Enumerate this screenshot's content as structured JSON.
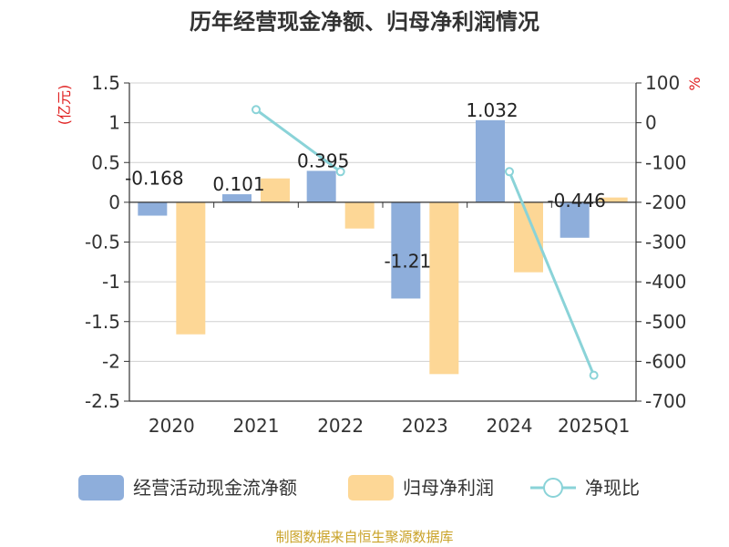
{
  "chart_data": {
    "type": "bar+line",
    "title": "历年经营现金净额、归母净利润情况",
    "categories": [
      "2020",
      "2021",
      "2022",
      "2023",
      "2024",
      "2025Q1"
    ],
    "series": [
      {
        "name": "经营活动现金流净额",
        "axis": "left",
        "type": "bar",
        "color": "#8eaedb",
        "values": [
          -0.168,
          0.101,
          0.395,
          -1.21,
          1.032,
          -0.446
        ],
        "labels": [
          "-0.168",
          "0.101",
          "0.395",
          "-1.21",
          "1.032",
          "-0.446"
        ]
      },
      {
        "name": "归母净利润",
        "axis": "left",
        "type": "bar",
        "color": "#fdd796",
        "values": [
          -1.66,
          0.3,
          -0.33,
          -2.16,
          -0.88,
          0.06
        ]
      },
      {
        "name": "净现比",
        "axis": "right",
        "type": "line",
        "color": "#8ad3d8",
        "values": [
          null,
          33,
          -123,
          null,
          -123,
          -635
        ]
      }
    ],
    "left_axis": {
      "unit": "(亿元)",
      "min": -2.5,
      "max": 1.5,
      "ticks": [
        1.5,
        1,
        0.5,
        0,
        -0.5,
        -1,
        -1.5,
        -2,
        -2.5
      ]
    },
    "right_axis": {
      "unit": "%",
      "min": -700,
      "max": 100,
      "ticks": [
        100,
        0,
        -100,
        -200,
        -300,
        -400,
        -500,
        -600,
        -700
      ]
    }
  },
  "source_text": "制图数据来自恒生聚源数据库"
}
